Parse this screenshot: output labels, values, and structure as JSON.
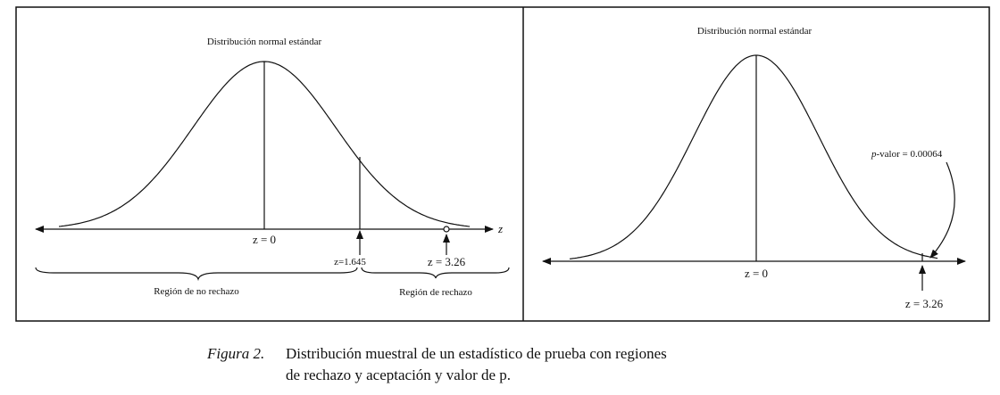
{
  "left_panel": {
    "title": "Distribución normal estándar",
    "axis_label": "z",
    "center_label": "z = 0",
    "critical_label": "z=1.645",
    "statistic_label": "z = 3.26",
    "non_rejection_region": "Región de no rechazo",
    "rejection_region": "Región de rechazo"
  },
  "right_panel": {
    "title": "Distribución normal estándar",
    "p_label": "p",
    "p_value_label": "-valor = 0.00064",
    "center_label": "z = 0",
    "statistic_label": "z = 3.26"
  },
  "caption": {
    "figure_label": "Figura 2.",
    "line_1": "Distribución muestral de un estadístico de prueba con regiones",
    "line_2": "de rechazo y aceptación y valor de p."
  }
}
